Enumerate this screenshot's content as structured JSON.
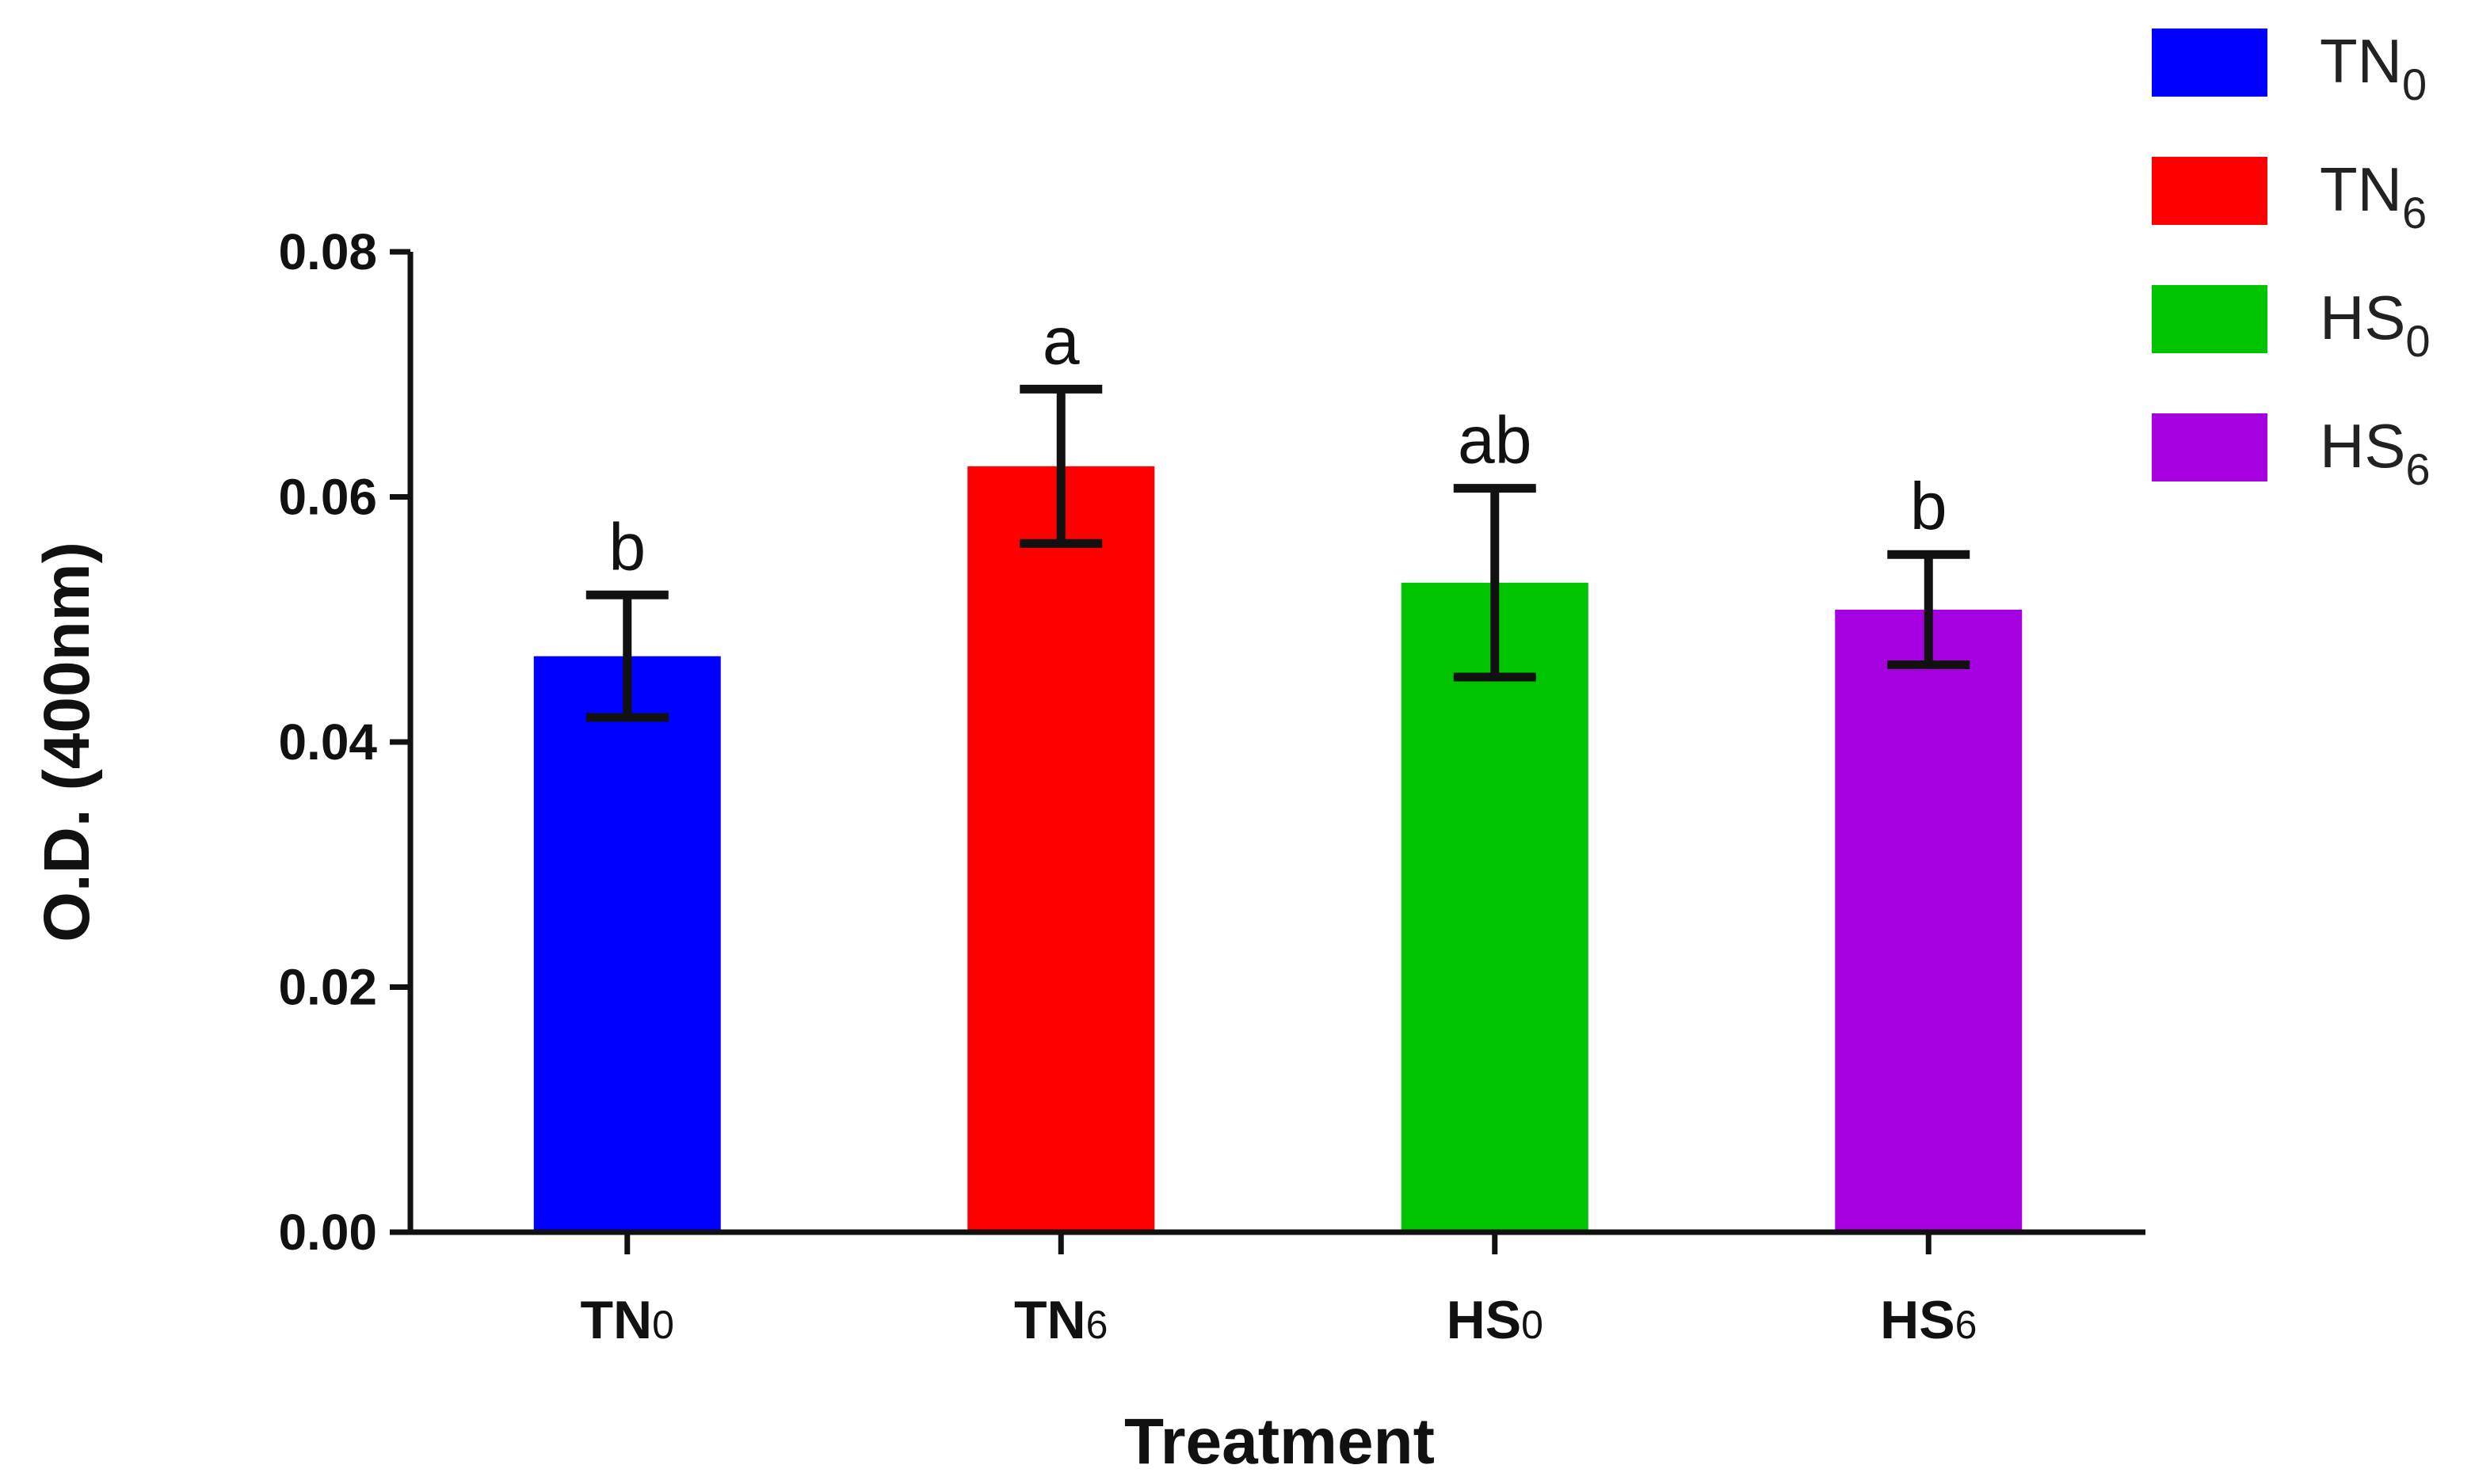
{
  "chart_data": {
    "type": "bar",
    "title": "",
    "xlabel": "Treatment",
    "ylabel": "O.D. (400nm)",
    "ylim": [
      0,
      0.08
    ],
    "yticks": [
      "0.00",
      "0.02",
      "0.04",
      "0.06",
      "0.08"
    ],
    "categories": [
      {
        "base": "TN",
        "sub": "0"
      },
      {
        "base": "TN",
        "sub": "6"
      },
      {
        "base": "HS",
        "sub": "0"
      },
      {
        "base": "HS",
        "sub": "6"
      }
    ],
    "values": [
      0.047,
      0.0625,
      0.053,
      0.0508
    ],
    "errors": [
      0.005,
      0.0063,
      0.0077,
      0.0045
    ],
    "significance": [
      "b",
      "a",
      "ab",
      "b"
    ],
    "colors": [
      "#0000ff",
      "#ff0000",
      "#00c400",
      "#a400e0"
    ],
    "legend": {
      "position": "top-right",
      "entries": [
        {
          "base": "TN",
          "sub": "0",
          "color": "#0000ff"
        },
        {
          "base": "TN",
          "sub": "6",
          "color": "#ff0000"
        },
        {
          "base": "HS",
          "sub": "0",
          "color": "#00c400"
        },
        {
          "base": "HS",
          "sub": "6",
          "color": "#a400e0"
        }
      ]
    }
  }
}
